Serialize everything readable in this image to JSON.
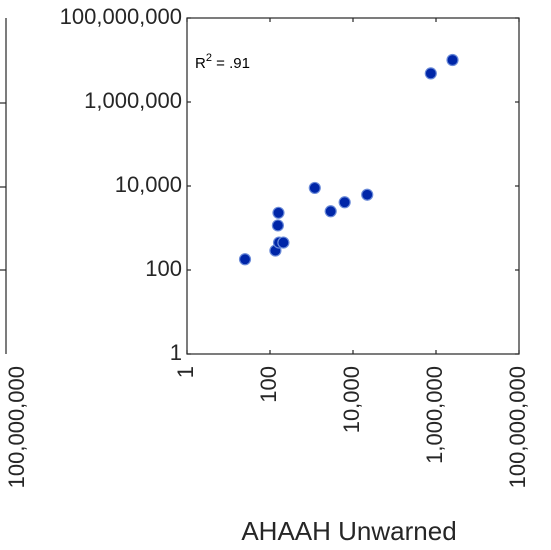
{
  "chart_data": {
    "type": "scatter",
    "title": "",
    "xlabel": "AHAAH Unwarned",
    "ylabel": "",
    "x_scale": "log",
    "y_scale": "log",
    "xlim": [
      1,
      100000000
    ],
    "ylim": [
      1,
      100000000
    ],
    "x_ticks": [
      1,
      100,
      10000,
      1000000,
      100000000
    ],
    "x_tick_labels": [
      "1",
      "100",
      "10,000",
      "1,000,000",
      "100,000,000"
    ],
    "y_ticks": [
      1,
      100,
      10000,
      1000000,
      100000000
    ],
    "y_tick_labels": [
      "1",
      "100",
      "10,000",
      "1,000,000",
      "100,000,000"
    ],
    "grid": false,
    "annotation": {
      "prefix": "R",
      "superscript": "2",
      "suffix": " = .91"
    },
    "marker_fill": "#0026a8",
    "marker_edge": "#6a8ad8",
    "series": [
      {
        "points": [
          {
            "x": 25,
            "y": 180
          },
          {
            "x": 135,
            "y": 290
          },
          {
            "x": 155,
            "y": 1150
          },
          {
            "x": 160,
            "y": 2300
          },
          {
            "x": 165,
            "y": 450
          },
          {
            "x": 210,
            "y": 450
          },
          {
            "x": 1200,
            "y": 9000
          },
          {
            "x": 2900,
            "y": 2500
          },
          {
            "x": 6300,
            "y": 4100
          },
          {
            "x": 22000,
            "y": 6200
          },
          {
            "x": 750000,
            "y": 4800000
          },
          {
            "x": 2500000,
            "y": 10000000
          }
        ]
      }
    ]
  }
}
